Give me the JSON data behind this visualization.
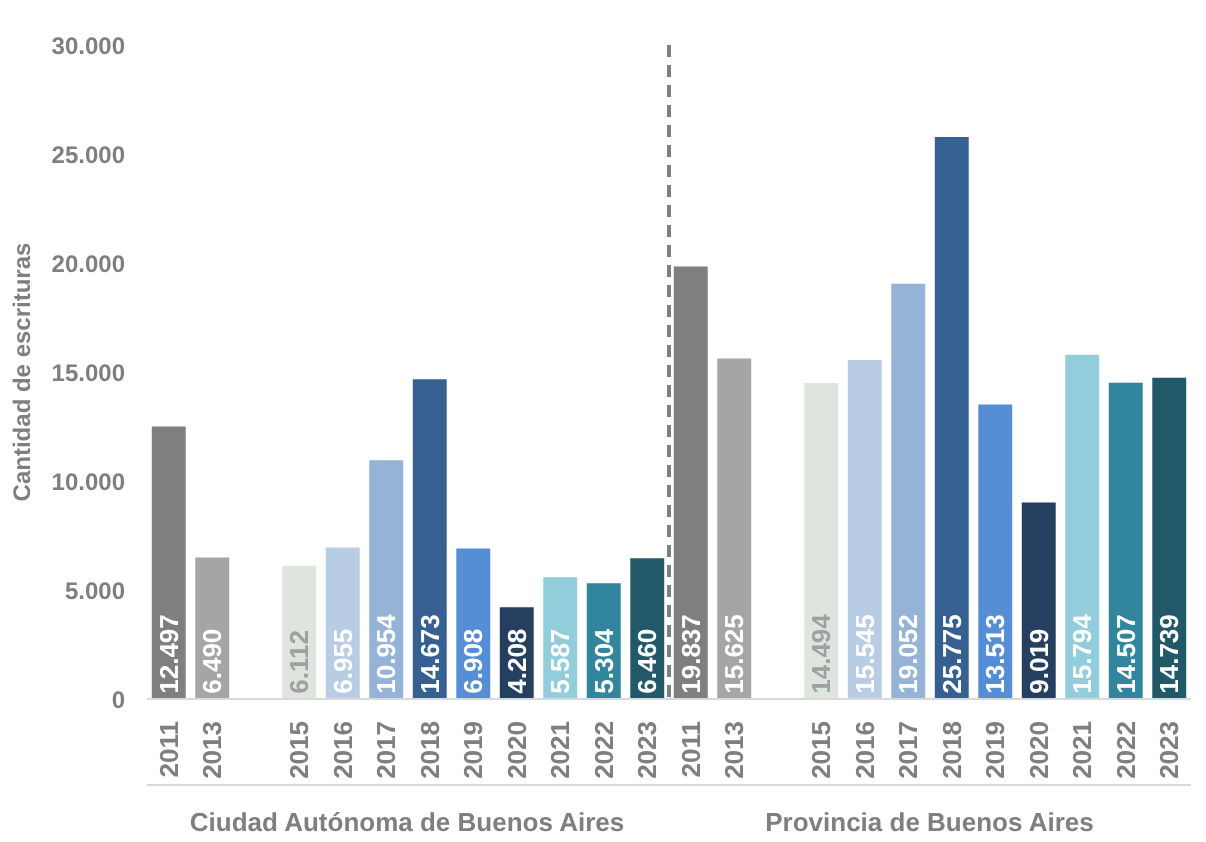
{
  "chart_data": {
    "type": "bar",
    "ylabel": "Cantidad de escrituras",
    "categories": [
      "2011",
      "2013",
      null,
      "2015",
      "2016",
      "2017",
      "2018",
      "2019",
      "2020",
      "2021",
      "2022",
      "2023",
      "2011",
      "2013",
      null,
      "2015",
      "2016",
      "2017",
      "2018",
      "2019",
      "2020",
      "2021",
      "2022",
      "2023"
    ],
    "values": [
      12497,
      6490,
      null,
      6112,
      6955,
      10954,
      14673,
      6908,
      4208,
      5587,
      5304,
      6460,
      19837,
      15625,
      null,
      14494,
      15545,
      19052,
      25775,
      13513,
      9019,
      15794,
      14507,
      14739
    ],
    "value_labels": [
      "12.497",
      "6.490",
      null,
      "6.112",
      "6.955",
      "10.954",
      "14.673",
      "6.908",
      "4.208",
      "5.587",
      "5.304",
      "6.460",
      "19.837",
      "15.625",
      null,
      "14.494",
      "15.545",
      "19.052",
      "25.775",
      "13.513",
      "9.019",
      "15.794",
      "14.507",
      "14.739"
    ],
    "colors": [
      "#7f7f7f",
      "#a5a5a5",
      null,
      "#dde5de",
      "#b8cce4",
      "#95b3d7",
      "#366092",
      "#558ed5",
      "#243f60",
      "#92cddc",
      "#31859c",
      "#215968",
      "#7f7f7f",
      "#a5a5a5",
      null,
      "#dde5de",
      "#b8cce4",
      "#95b3d7",
      "#366092",
      "#558ed5",
      "#243f60",
      "#92cddc",
      "#31859c",
      "#215968"
    ],
    "ylim": [
      0,
      30000
    ],
    "yticks": [
      {
        "value": 0,
        "label": "0"
      },
      {
        "value": 5000,
        "label": "5.000"
      },
      {
        "value": 10000,
        "label": "10.000"
      },
      {
        "value": 15000,
        "label": "15.000"
      },
      {
        "value": 20000,
        "label": "20.000"
      },
      {
        "value": 25000,
        "label": "25.000"
      },
      {
        "value": 30000,
        "label": "30.000"
      }
    ],
    "grid": false,
    "annotations": [
      "Ciudad Autónoma de Buenos Aires",
      "Provincia de Buenos Aires"
    ]
  }
}
